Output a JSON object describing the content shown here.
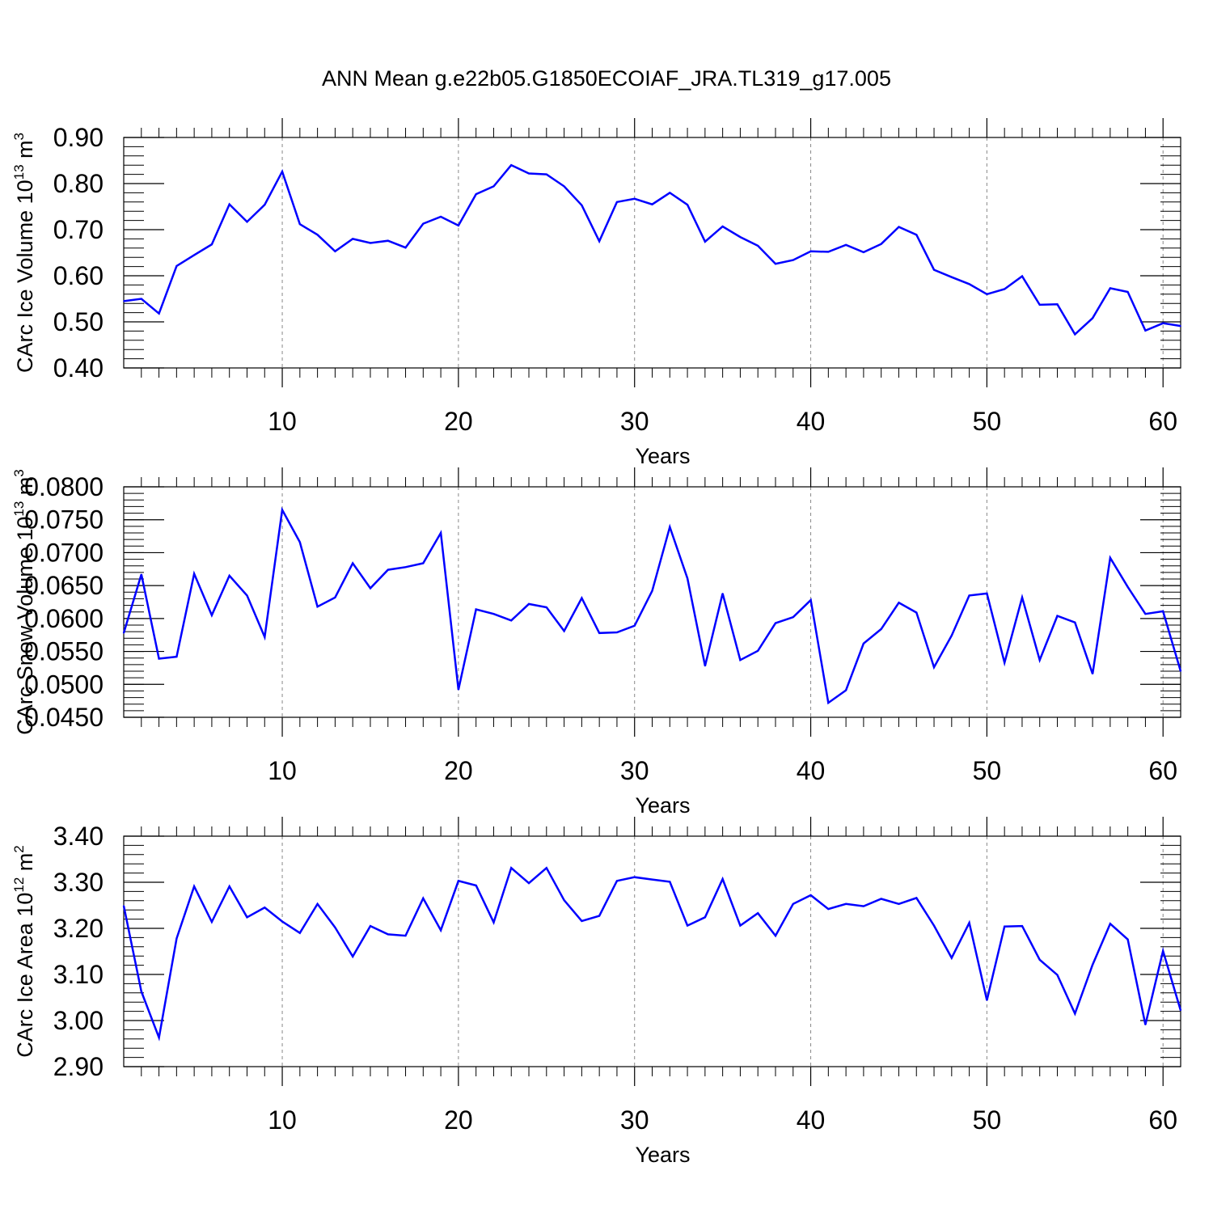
{
  "title": "ANN Mean g.e22b05.G1850ECOIAF_JRA.TL319_g17.005",
  "colors": {
    "line": "#0000ff",
    "axis": "#000000",
    "grid": "#888888"
  },
  "chart_data": [
    {
      "type": "line",
      "ylabel": "CArc Ice Volume 10",
      "ylabel_exp": "13",
      "ylabel_unit": "m",
      "ylabel_unit_exp": "3",
      "xlabel": "Years",
      "xlim": [
        1,
        61
      ],
      "ylim": [
        0.4,
        0.9
      ],
      "x_ticks": [
        10,
        20,
        30,
        40,
        50,
        60
      ],
      "x_tick_labels": [
        "10",
        "20",
        "30",
        "40",
        "50",
        "60"
      ],
      "y_ticks": [
        0.4,
        0.5,
        0.6,
        0.7,
        0.8,
        0.9
      ],
      "y_tick_labels": [
        "0.40",
        "0.50",
        "0.60",
        "0.70",
        "0.80",
        "0.90"
      ],
      "grid": "vertical dashed at major x ticks",
      "series": [
        {
          "name": "CArc Ice Volume",
          "x": [
            1,
            2,
            3,
            4,
            5,
            6,
            7,
            8,
            9,
            10,
            11,
            12,
            13,
            14,
            15,
            16,
            17,
            18,
            19,
            20,
            21,
            22,
            23,
            24,
            25,
            26,
            27,
            28,
            29,
            30,
            31,
            32,
            33,
            34,
            35,
            36,
            37,
            38,
            39,
            40,
            41,
            42,
            43,
            44,
            45,
            46,
            47,
            48,
            49,
            50,
            51,
            52,
            53,
            54,
            55,
            56,
            57,
            58,
            59,
            60,
            61
          ],
          "values": [
            0.545,
            0.55,
            0.518,
            0.621,
            0.645,
            0.668,
            0.755,
            0.717,
            0.754,
            0.826,
            0.712,
            0.689,
            0.653,
            0.68,
            0.671,
            0.676,
            0.661,
            0.713,
            0.728,
            0.709,
            0.777,
            0.794,
            0.84,
            0.822,
            0.82,
            0.794,
            0.753,
            0.675,
            0.76,
            0.767,
            0.755,
            0.78,
            0.754,
            0.674,
            0.707,
            0.684,
            0.665,
            0.626,
            0.634,
            0.653,
            0.652,
            0.667,
            0.651,
            0.669,
            0.706,
            0.689,
            0.613,
            0.597,
            0.582,
            0.56,
            0.571,
            0.599,
            0.537,
            0.538,
            0.473,
            0.508,
            0.573,
            0.565,
            0.481,
            0.497,
            0.491
          ]
        }
      ]
    },
    {
      "type": "line",
      "ylabel": "CArc Snow Volume 10",
      "ylabel_exp": "13",
      "ylabel_unit": "m",
      "ylabel_unit_exp": "3",
      "xlabel": "Years",
      "xlim": [
        1,
        61
      ],
      "ylim": [
        0.045,
        0.08
      ],
      "x_ticks": [
        10,
        20,
        30,
        40,
        50,
        60
      ],
      "x_tick_labels": [
        "10",
        "20",
        "30",
        "40",
        "50",
        "60"
      ],
      "y_ticks": [
        0.045,
        0.05,
        0.055,
        0.06,
        0.065,
        0.07,
        0.075,
        0.08
      ],
      "y_tick_labels": [
        "0.0450",
        "0.0500",
        "0.0550",
        "0.0600",
        "0.0650",
        "0.0700",
        "0.0750",
        "0.0800"
      ],
      "grid": "vertical dashed at major x ticks",
      "series": [
        {
          "name": "CArc Snow Volume",
          "x": [
            1,
            2,
            3,
            4,
            5,
            6,
            7,
            8,
            9,
            10,
            11,
            12,
            13,
            14,
            15,
            16,
            17,
            18,
            19,
            20,
            21,
            22,
            23,
            24,
            25,
            26,
            27,
            28,
            29,
            30,
            31,
            32,
            33,
            34,
            35,
            36,
            37,
            38,
            39,
            40,
            41,
            42,
            43,
            44,
            45,
            46,
            47,
            48,
            49,
            50,
            51,
            52,
            53,
            54,
            55,
            56,
            57,
            58,
            59,
            60,
            61
          ],
          "values": [
            0.0578,
            0.0667,
            0.0539,
            0.0542,
            0.0668,
            0.0605,
            0.0665,
            0.0635,
            0.0572,
            0.0765,
            0.0716,
            0.0618,
            0.0632,
            0.0684,
            0.0646,
            0.0674,
            0.0678,
            0.0684,
            0.073,
            0.0492,
            0.0614,
            0.0607,
            0.0597,
            0.0622,
            0.0617,
            0.0581,
            0.0631,
            0.0578,
            0.0579,
            0.0589,
            0.0642,
            0.0739,
            0.0661,
            0.0528,
            0.0638,
            0.0537,
            0.0551,
            0.0593,
            0.0602,
            0.0628,
            0.0472,
            0.0491,
            0.0562,
            0.0584,
            0.0624,
            0.0609,
            0.0526,
            0.0574,
            0.0635,
            0.0638,
            0.0533,
            0.0632,
            0.0537,
            0.0604,
            0.0594,
            0.0516,
            0.0692,
            0.0648,
            0.0607,
            0.0611,
            0.052
          ]
        }
      ]
    },
    {
      "type": "line",
      "ylabel": "CArc Ice Area 10",
      "ylabel_exp": "12",
      "ylabel_unit": "m",
      "ylabel_unit_exp": "2",
      "xlabel": "Years",
      "xlim": [
        1,
        61
      ],
      "ylim": [
        2.9,
        3.4
      ],
      "x_ticks": [
        10,
        20,
        30,
        40,
        50,
        60
      ],
      "x_tick_labels": [
        "10",
        "20",
        "30",
        "40",
        "50",
        "60"
      ],
      "y_ticks": [
        2.9,
        3.0,
        3.1,
        3.2,
        3.3,
        3.4
      ],
      "y_tick_labels": [
        "2.90",
        "3.00",
        "3.10",
        "3.20",
        "3.30",
        "3.40"
      ],
      "grid": "vertical dashed at major x ticks",
      "series": [
        {
          "name": "CArc Ice Area",
          "x": [
            1,
            2,
            3,
            4,
            5,
            6,
            7,
            8,
            9,
            10,
            11,
            12,
            13,
            14,
            15,
            16,
            17,
            18,
            19,
            20,
            21,
            22,
            23,
            24,
            25,
            26,
            27,
            28,
            29,
            30,
            31,
            32,
            33,
            34,
            35,
            36,
            37,
            38,
            39,
            40,
            41,
            42,
            43,
            44,
            45,
            46,
            47,
            48,
            49,
            50,
            51,
            52,
            53,
            54,
            55,
            56,
            57,
            58,
            59,
            60,
            61
          ],
          "values": [
            3.249,
            3.063,
            2.963,
            3.178,
            3.291,
            3.214,
            3.291,
            3.224,
            3.245,
            3.215,
            3.19,
            3.253,
            3.202,
            3.139,
            3.205,
            3.187,
            3.184,
            3.265,
            3.196,
            3.303,
            3.293,
            3.213,
            3.331,
            3.298,
            3.331,
            3.261,
            3.216,
            3.227,
            3.303,
            3.311,
            3.306,
            3.301,
            3.206,
            3.224,
            3.307,
            3.206,
            3.233,
            3.184,
            3.253,
            3.272,
            3.242,
            3.253,
            3.248,
            3.264,
            3.253,
            3.266,
            3.206,
            3.136,
            3.212,
            3.044,
            3.204,
            3.205,
            3.132,
            3.099,
            3.015,
            3.121,
            3.21,
            3.176,
            2.991,
            3.151,
            3.022
          ]
        }
      ]
    }
  ]
}
